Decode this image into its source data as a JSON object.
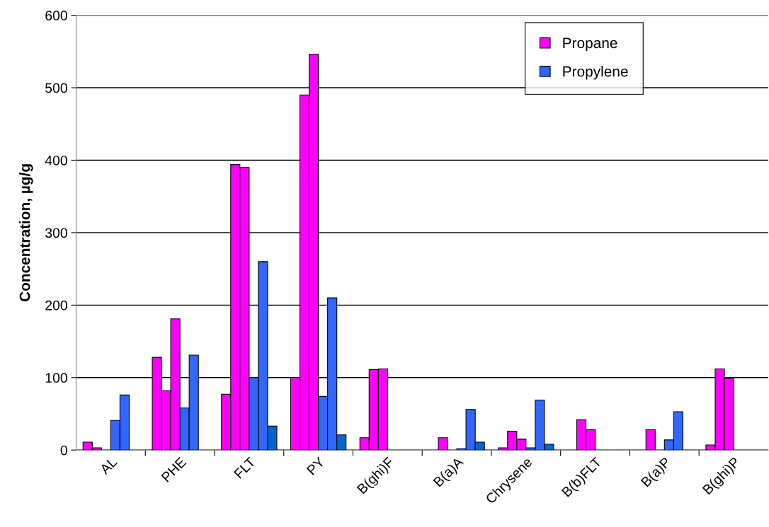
{
  "chart_data": {
    "type": "bar",
    "ylabel": "Concentration, µg/g",
    "categories": [
      "AL",
      "PHE",
      "FLT",
      "PY",
      "B(ghi)F",
      "B(a)A",
      "Chrysene",
      "B(b)FLT",
      "B(a)P",
      "B(ghi)P"
    ],
    "series": [
      {
        "name": "Propane",
        "color": "#ff00ff",
        "values": [
          11,
          128,
          77,
          100,
          17,
          null,
          3,
          null,
          null,
          7
        ]
      },
      {
        "color": "#ff00ff",
        "values": [
          3,
          82,
          394,
          490,
          111,
          17,
          26,
          42,
          28,
          112
        ]
      },
      {
        "color": "#ff00ff",
        "values": [
          null,
          181,
          390,
          546,
          112,
          null,
          15,
          28,
          null,
          99
        ]
      },
      {
        "name": "Propylene",
        "color": "#3366ff",
        "values": [
          41,
          58,
          100,
          74,
          null,
          2,
          3,
          null,
          14,
          null
        ]
      },
      {
        "color": "#3366ff",
        "values": [
          76,
          131,
          260,
          210,
          null,
          56,
          69,
          null,
          53,
          null
        ]
      },
      {
        "color": "#0066cc",
        "values": [
          null,
          null,
          33,
          21,
          null,
          11,
          8,
          null,
          null,
          null
        ]
      }
    ],
    "ylim": [
      0,
      600
    ],
    "yticks": [
      0,
      100,
      200,
      300,
      400,
      500,
      600
    ],
    "grid": "y",
    "legend": "top right"
  }
}
